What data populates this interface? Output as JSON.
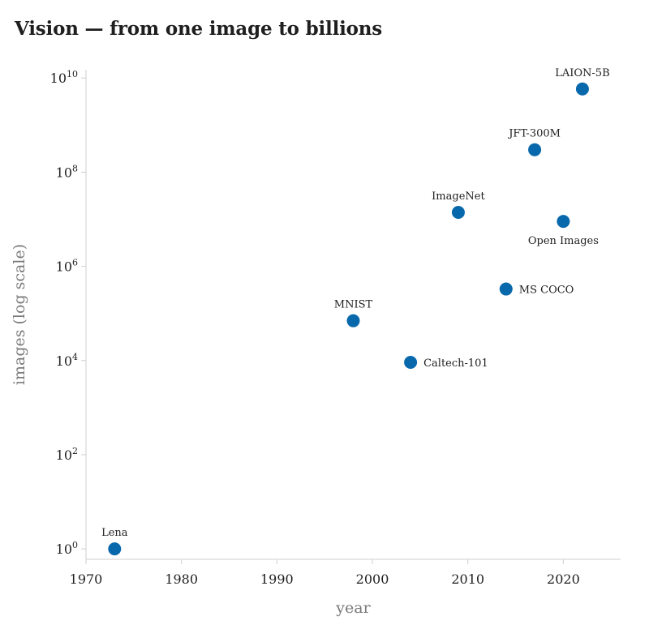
{
  "chart_data": {
    "type": "scatter",
    "title": "Vision — from one image to billions",
    "xlabel": "year",
    "ylabel": "images (log scale)",
    "x_scale": "linear",
    "y_scale": "log10",
    "xlim": [
      1970,
      2026
    ],
    "ylim": [
      0.6,
      15000000000
    ],
    "x_ticks": [
      1970,
      1980,
      1990,
      2000,
      2010,
      2020
    ],
    "y_tick_exponents": [
      0,
      2,
      4,
      6,
      8,
      10
    ],
    "y_tick_base": "10",
    "grid": false,
    "legend": false,
    "marker_color": "#0868ac",
    "points": [
      {
        "label": "Lena",
        "x": 1973,
        "y": 1,
        "label_position": "above"
      },
      {
        "label": "MNIST",
        "x": 1998,
        "y": 70000,
        "label_position": "above"
      },
      {
        "label": "Caltech-101",
        "x": 2004,
        "y": 9146,
        "label_position": "right"
      },
      {
        "label": "ImageNet",
        "x": 2009,
        "y": 14000000,
        "label_position": "above"
      },
      {
        "label": "MS COCO",
        "x": 2014,
        "y": 330000,
        "label_position": "right"
      },
      {
        "label": "JFT-300M",
        "x": 2017,
        "y": 300000000,
        "label_position": "above"
      },
      {
        "label": "Open Images",
        "x": 2020,
        "y": 9000000,
        "label_position": "below"
      },
      {
        "label": "LAION-5B",
        "x": 2022,
        "y": 5850000000,
        "label_position": "above"
      }
    ]
  }
}
